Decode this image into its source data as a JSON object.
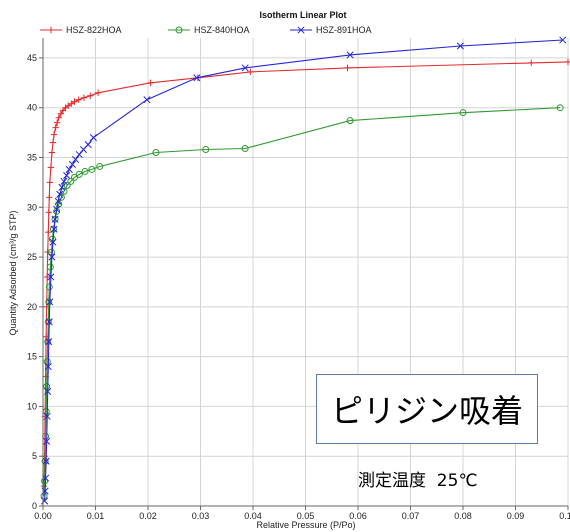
{
  "colors": {
    "series_822": "#e8292b",
    "series_840": "#2f9a2f",
    "series_891": "#2626d6",
    "axis": "#666666",
    "grid": "#d4d4d4",
    "annotation_border": "#5a7ca5"
  },
  "annotations": {
    "box_text": "ピリジン吸着",
    "temperature_text": "測定温度  25℃"
  },
  "chart_data": {
    "type": "line",
    "title": "Isotherm Linear Plot",
    "xlabel": "Relative Pressure (P/Po)",
    "ylabel": "Quantity Adsorbed (cm³/g STP)",
    "xlim": [
      0,
      0.1
    ],
    "ylim": [
      0,
      47
    ],
    "x_ticks": [
      "0.00",
      "0.01",
      "0.02",
      "0.03",
      "0.04",
      "0.05",
      "0.06",
      "0.07",
      "0.08",
      "0.09",
      "0.10"
    ],
    "y_ticks": [
      "0",
      "5",
      "10",
      "15",
      "20",
      "25",
      "30",
      "35",
      "40",
      "45"
    ],
    "grid": true,
    "legend_position": "top",
    "series": [
      {
        "name": "HSZ-822HOA",
        "marker": "plus",
        "x": [
          0.0002,
          0.0003,
          0.0004,
          0.0005,
          0.0006,
          0.0007,
          0.0008,
          0.0009,
          0.001,
          0.0011,
          0.0012,
          0.0013,
          0.0015,
          0.0017,
          0.0019,
          0.0021,
          0.0024,
          0.0027,
          0.003,
          0.0034,
          0.0038,
          0.0043,
          0.0048,
          0.0054,
          0.006,
          0.0068,
          0.0078,
          0.009,
          0.0105,
          0.0205,
          0.0295,
          0.0395,
          0.058,
          0.093,
          0.1
        ],
        "y": [
          2,
          5,
          9,
          13,
          17,
          20,
          23,
          25.5,
          27.5,
          29.5,
          31,
          32.5,
          34,
          35.5,
          36.5,
          37.3,
          38,
          38.5,
          39,
          39.4,
          39.7,
          40,
          40.2,
          40.4,
          40.6,
          40.8,
          41,
          41.2,
          41.5,
          42.5,
          43,
          43.6,
          44,
          44.5,
          44.6
        ]
      },
      {
        "name": "HSZ-840HOA",
        "marker": "circle",
        "x": [
          0.0002,
          0.0003,
          0.0004,
          0.0005,
          0.0006,
          0.0007,
          0.0008,
          0.0009,
          0.001,
          0.0011,
          0.0012,
          0.0014,
          0.0016,
          0.0018,
          0.002,
          0.0023,
          0.0026,
          0.003,
          0.0035,
          0.004,
          0.0046,
          0.0053,
          0.006,
          0.0069,
          0.008,
          0.0093,
          0.0108,
          0.0215,
          0.031,
          0.0385,
          0.0585,
          0.08,
          0.0985
        ],
        "y": [
          1,
          2.5,
          4.5,
          7,
          9.5,
          12,
          14.5,
          16.5,
          18.5,
          20.5,
          22,
          24,
          25.5,
          26.8,
          27.8,
          28.8,
          29.6,
          30.3,
          31,
          31.6,
          32.2,
          32.6,
          33,
          33.3,
          33.6,
          33.8,
          34.1,
          35.5,
          35.8,
          35.9,
          38.7,
          39.5,
          40
        ]
      },
      {
        "name": "HSZ-891HOA",
        "marker": "x",
        "x": [
          0.0003,
          0.0004,
          0.0005,
          0.0006,
          0.0007,
          0.0008,
          0.0009,
          0.001,
          0.0011,
          0.0012,
          0.0013,
          0.0015,
          0.0017,
          0.0019,
          0.0021,
          0.0023,
          0.0026,
          0.0029,
          0.0032,
          0.0036,
          0.004,
          0.0045,
          0.005,
          0.0056,
          0.0062,
          0.0069,
          0.0077,
          0.0086,
          0.0096,
          0.0198,
          0.0293,
          0.0385,
          0.0585,
          0.0795,
          0.099
        ],
        "y": [
          0.5,
          1.5,
          2.8,
          4.5,
          6.5,
          9,
          11.5,
          14,
          16.5,
          18.5,
          20.5,
          23,
          25,
          26.5,
          27.8,
          28.8,
          29.8,
          30.6,
          31.3,
          32,
          32.6,
          33.2,
          33.8,
          34.3,
          34.8,
          35.3,
          35.8,
          36.3,
          37,
          40.8,
          43,
          44,
          45.3,
          46.2,
          46.8
        ]
      }
    ]
  }
}
